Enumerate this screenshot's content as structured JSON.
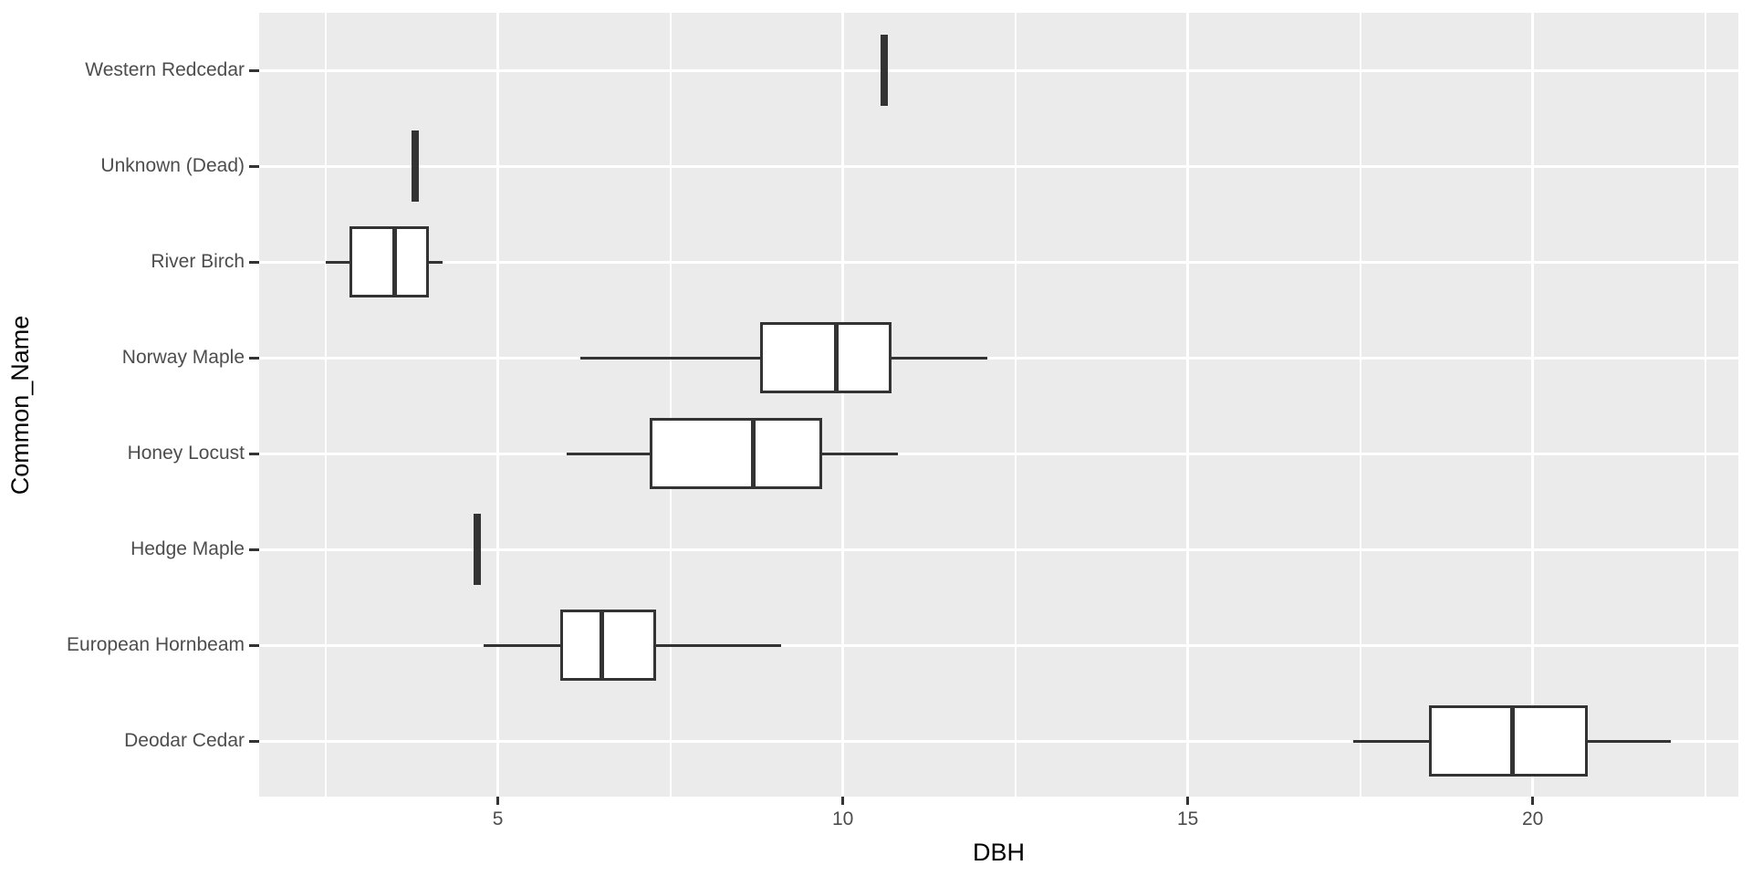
{
  "chart_data": {
    "type": "boxplot",
    "orientation": "horizontal",
    "title": "",
    "xlabel": "DBH",
    "ylabel": "Common_Name",
    "xlim": [
      1.54,
      22.98
    ],
    "x_major_ticks": [
      5,
      10,
      15,
      20
    ],
    "x_major_tick_labels": [
      "5",
      "10",
      "15",
      "20"
    ],
    "x_minor_gridlines": [
      2.5,
      7.5,
      12.5,
      17.5,
      22.5
    ],
    "grid": "on",
    "legend": "none",
    "categories_top_to_bottom": [
      "Western Redcedar",
      "Unknown (Dead)",
      "River Birch",
      "Norway Maple",
      "Honey Locust",
      "Hedge Maple",
      "European Hornbeam",
      "Deodar Cedar"
    ],
    "series": [
      {
        "category": "Western Redcedar",
        "min": 10.6,
        "q1": 10.6,
        "median": 10.6,
        "q3": 10.6,
        "max": 10.6
      },
      {
        "category": "Unknown (Dead)",
        "min": 3.8,
        "q1": 3.8,
        "median": 3.8,
        "q3": 3.8,
        "max": 3.8
      },
      {
        "category": "River Birch",
        "min": 2.5,
        "q1": 2.85,
        "median": 3.5,
        "q3": 4.0,
        "max": 4.2
      },
      {
        "category": "Norway Maple",
        "min": 6.2,
        "q1": 8.8,
        "median": 9.9,
        "q3": 10.7,
        "max": 12.1
      },
      {
        "category": "Honey Locust",
        "min": 6.0,
        "q1": 7.2,
        "median": 8.7,
        "q3": 9.7,
        "max": 10.8
      },
      {
        "category": "Hedge Maple",
        "min": 4.7,
        "q1": 4.7,
        "median": 4.7,
        "q3": 4.7,
        "max": 4.7
      },
      {
        "category": "European Hornbeam",
        "min": 4.8,
        "q1": 5.9,
        "median": 6.5,
        "q3": 7.3,
        "max": 9.1
      },
      {
        "category": "Deodar Cedar",
        "min": 17.4,
        "q1": 18.5,
        "median": 19.7,
        "q3": 20.8,
        "max": 22.0
      }
    ],
    "colors": {
      "panel_background": "#EBEBEB",
      "gridline": "#FFFFFF",
      "box_stroke": "#333333",
      "box_fill": "#FFFFFF",
      "tick_mark": "#333333",
      "axis_text": "#4D4D4D",
      "axis_title": "#000000"
    }
  }
}
